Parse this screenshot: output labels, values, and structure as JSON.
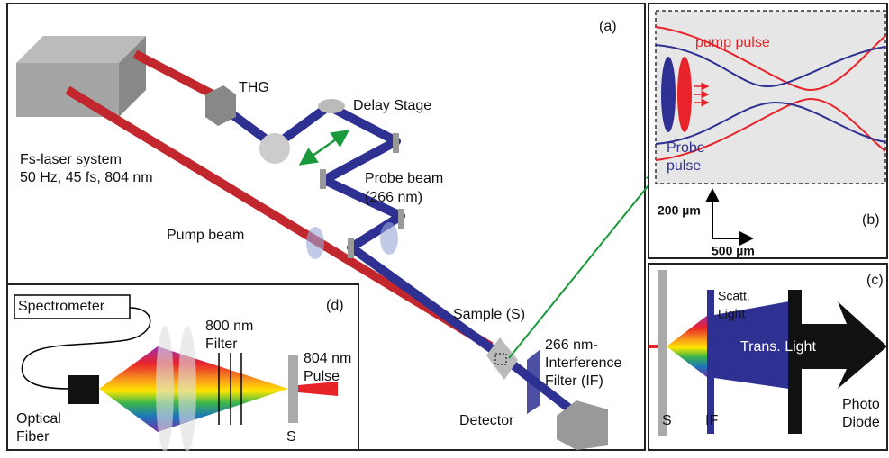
{
  "panel_a": {
    "label": "(a)",
    "thg": "THG",
    "delay_stage": "Delay Stage",
    "laser": [
      "Fs-laser system",
      "50 Hz, 45 fs, 804 nm"
    ],
    "probe_beam": [
      "Probe beam",
      "(266 nm)"
    ],
    "pump_beam": "Pump beam",
    "sample": "Sample (S)",
    "filter": [
      "266 nm-",
      "Interference",
      "Filter (IF)"
    ],
    "detector": "Detector"
  },
  "panel_b": {
    "label": "(b)",
    "pump_pulse": "pump pulse",
    "probe_pulse": [
      "Probe",
      "pulse"
    ],
    "scale_y": "200 µm",
    "scale_x": "500 µm"
  },
  "panel_c": {
    "label": "(c)",
    "scatt": [
      "Scatt.",
      "Light"
    ],
    "trans": "Trans. Light",
    "s": "S",
    "if": "IF",
    "diode": [
      "Photo",
      "Diode"
    ]
  },
  "panel_d": {
    "label": "(d)",
    "spectrometer": "Spectrometer",
    "filter": [
      "800 nm",
      "Filter"
    ],
    "pulse": [
      "804 nm",
      "Pulse"
    ],
    "s": "S",
    "fiber": [
      "Optical",
      "Fiber"
    ]
  }
}
